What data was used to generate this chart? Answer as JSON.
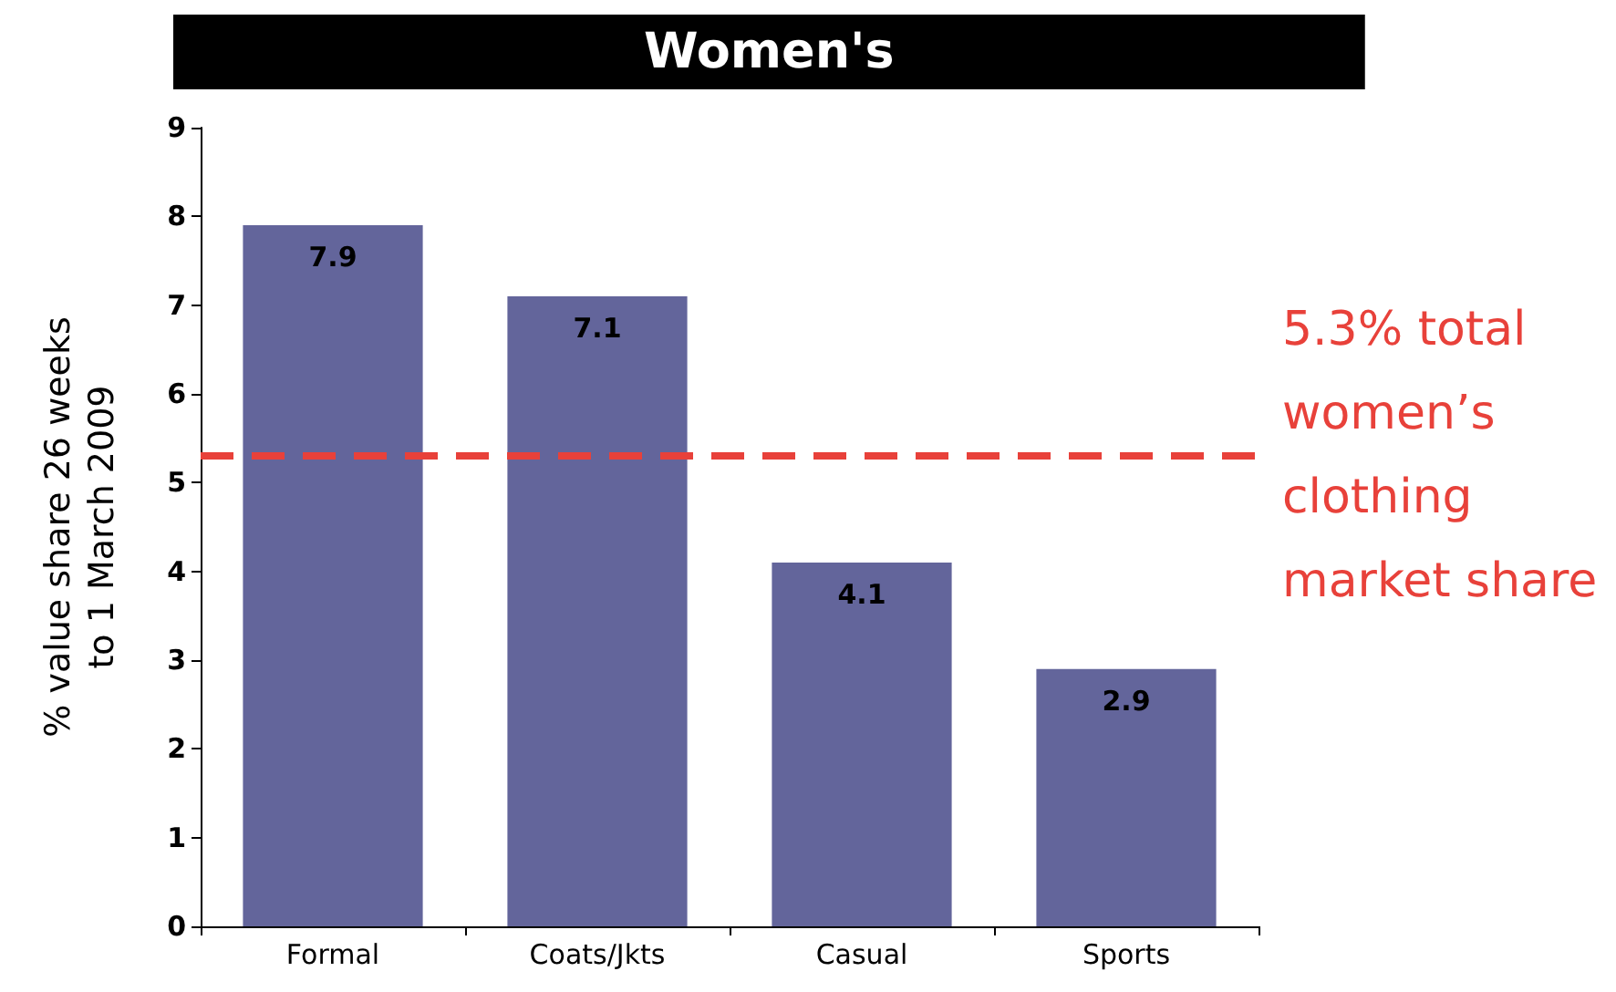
{
  "chart_data": {
    "type": "bar",
    "title": "Women's",
    "ylabel": "% value share 26 weeks\nto 1 March 2009",
    "categories": [
      "Formal",
      "Coats/Jkts",
      "Casual",
      "Sports"
    ],
    "values": [
      7.9,
      7.1,
      4.1,
      2.9
    ],
    "color": "#63659b",
    "data_labels": true,
    "ylim": [
      0,
      9
    ],
    "yticks": [
      0,
      1,
      2,
      3,
      4,
      5,
      6,
      7,
      8,
      9
    ],
    "grid": false,
    "ref_lines": [
      {
        "axis": "y",
        "value": 5.3,
        "label": "5.3% total women’s clothing market share",
        "color": "#e8413a",
        "line_style": "dashed"
      }
    ]
  }
}
